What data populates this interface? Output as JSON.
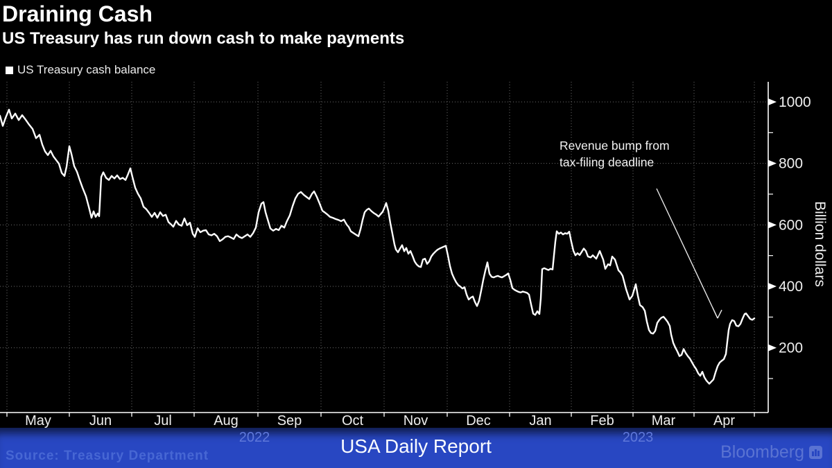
{
  "header": {
    "title": "Draining Cash",
    "subtitle": "US Treasury has run down cash to make payments"
  },
  "legend": {
    "marker_color": "#ffffff",
    "label": "US Treasury cash balance"
  },
  "annotation": {
    "line1": "Revenue bump from",
    "line2": "tax-filing deadline"
  },
  "footer": {
    "source": "Source: Treasury Department",
    "report_title": "USA Daily Report",
    "brand": "Bloomberg",
    "year_left": "2022",
    "year_right": "2023",
    "band_color": "#2847c2"
  },
  "chart_data": {
    "type": "line",
    "title": "Draining Cash",
    "xlabel": "",
    "ylabel": "Billion dollars",
    "x_months": [
      "May",
      "Jun",
      "Jul",
      "Aug",
      "Sep",
      "Oct",
      "Nov",
      "Dec",
      "Jan",
      "Feb",
      "Mar",
      "Apr"
    ],
    "x_years": [
      "2022",
      "2023"
    ],
    "y_ticks": [
      200,
      400,
      600,
      800,
      1000
    ],
    "y_minor_ticks": [
      100,
      300,
      500,
      700,
      900
    ],
    "ylim": [
      0,
      1060
    ],
    "grid": "dotted",
    "legend_position": "top-left",
    "line_color": "#ffffff",
    "background": "#000000",
    "annotation_text": "Revenue bump from tax-filing deadline",
    "series": [
      {
        "name": "US Treasury cash balance",
        "units": "billion USD",
        "points": [
          [
            0,
            955
          ],
          [
            4,
            922
          ],
          [
            8,
            948
          ],
          [
            13,
            975
          ],
          [
            17,
            946
          ],
          [
            22,
            962
          ],
          [
            27,
            941
          ],
          [
            32,
            957
          ],
          [
            37,
            942
          ],
          [
            42,
            926
          ],
          [
            47,
            912
          ],
          [
            52,
            882
          ],
          [
            57,
            893
          ],
          [
            61,
            861
          ],
          [
            65,
            839
          ],
          [
            69,
            827
          ],
          [
            73,
            841
          ],
          [
            77,
            823
          ],
          [
            81,
            811
          ],
          [
            85,
            799
          ],
          [
            89,
            769
          ],
          [
            93,
            759
          ],
          [
            96,
            789
          ],
          [
            100,
            856
          ],
          [
            103,
            831
          ],
          [
            107,
            791
          ],
          [
            111,
            773
          ],
          [
            115,
            746
          ],
          [
            119,
            721
          ],
          [
            124,
            693
          ],
          [
            128,
            659
          ],
          [
            132,
            623
          ],
          [
            135,
            644
          ],
          [
            138,
            626
          ],
          [
            141,
            637
          ],
          [
            143,
            628
          ],
          [
            146,
            756
          ],
          [
            149,
            771
          ],
          [
            153,
            753
          ],
          [
            157,
            746
          ],
          [
            161,
            759
          ],
          [
            165,
            751
          ],
          [
            169,
            761
          ],
          [
            173,
            749
          ],
          [
            177,
            753
          ],
          [
            181,
            746
          ],
          [
            184,
            761
          ],
          [
            188,
            784
          ],
          [
            191,
            756
          ],
          [
            195,
            721
          ],
          [
            199,
            701
          ],
          [
            203,
            686
          ],
          [
            207,
            659
          ],
          [
            211,
            651
          ],
          [
            215,
            639
          ],
          [
            219,
            626
          ],
          [
            223,
            639
          ],
          [
            227,
            623
          ],
          [
            231,
            641
          ],
          [
            235,
            629
          ],
          [
            239,
            633
          ],
          [
            243,
            609
          ],
          [
            247,
            601
          ],
          [
            250,
            594
          ],
          [
            254,
            613
          ],
          [
            258,
            601
          ],
          [
            262,
            597
          ],
          [
            266,
            621
          ],
          [
            270,
            599
          ],
          [
            274,
            607
          ],
          [
            278,
            571
          ],
          [
            281,
            561
          ],
          [
            285,
            589
          ],
          [
            289,
            576
          ],
          [
            293,
            581
          ],
          [
            297,
            583
          ],
          [
            301,
            569
          ],
          [
            305,
            566
          ],
          [
            309,
            571
          ],
          [
            313,
            563
          ],
          [
            317,
            547
          ],
          [
            321,
            553
          ],
          [
            325,
            561
          ],
          [
            329,
            563
          ],
          [
            333,
            559
          ],
          [
            337,
            554
          ],
          [
            341,
            569
          ],
          [
            345,
            561
          ],
          [
            349,
            557
          ],
          [
            353,
            563
          ],
          [
            357,
            569
          ],
          [
            361,
            561
          ],
          [
            365,
            573
          ],
          [
            369,
            591
          ],
          [
            373,
            641
          ],
          [
            377,
            669
          ],
          [
            380,
            674
          ],
          [
            383,
            641
          ],
          [
            386,
            618
          ],
          [
            390,
            588
          ],
          [
            394,
            581
          ],
          [
            398,
            587
          ],
          [
            402,
            583
          ],
          [
            406,
            597
          ],
          [
            410,
            591
          ],
          [
            414,
            613
          ],
          [
            418,
            631
          ],
          [
            422,
            661
          ],
          [
            426,
            686
          ],
          [
            430,
            701
          ],
          [
            434,
            707
          ],
          [
            438,
            698
          ],
          [
            442,
            691
          ],
          [
            446,
            684
          ],
          [
            450,
            701
          ],
          [
            453,
            709
          ],
          [
            457,
            691
          ],
          [
            461,
            669
          ],
          [
            465,
            646
          ],
          [
            468,
            641
          ],
          [
            472,
            634
          ],
          [
            476,
            626
          ],
          [
            480,
            623
          ],
          [
            484,
            619
          ],
          [
            488,
            616
          ],
          [
            492,
            612
          ],
          [
            496,
            617
          ],
          [
            500,
            601
          ],
          [
            503,
            593
          ],
          [
            506,
            579
          ],
          [
            510,
            573
          ],
          [
            514,
            567
          ],
          [
            517,
            563
          ],
          [
            520,
            586
          ],
          [
            523,
            616
          ],
          [
            526,
            641
          ],
          [
            529,
            649
          ],
          [
            532,
            653
          ],
          [
            536,
            644
          ],
          [
            540,
            637
          ],
          [
            543,
            633
          ],
          [
            546,
            627
          ],
          [
            549,
            635
          ],
          [
            552,
            643
          ],
          [
            555,
            659
          ],
          [
            557,
            671
          ],
          [
            560,
            646
          ],
          [
            563,
            606
          ],
          [
            566,
            571
          ],
          [
            569,
            536
          ],
          [
            571,
            520
          ],
          [
            574,
            511
          ],
          [
            577,
            523
          ],
          [
            580,
            534
          ],
          [
            583,
            514
          ],
          [
            586,
            525
          ],
          [
            589,
            506
          ],
          [
            592,
            515
          ],
          [
            595,
            499
          ],
          [
            598,
            481
          ],
          [
            601,
            471
          ],
          [
            604,
            465
          ],
          [
            607,
            463
          ],
          [
            610,
            487
          ],
          [
            613,
            490
          ],
          [
            616,
            473
          ],
          [
            619,
            481
          ],
          [
            622,
            497
          ],
          [
            625,
            506
          ],
          [
            628,
            513
          ],
          [
            631,
            519
          ],
          [
            634,
            523
          ],
          [
            637,
            526
          ],
          [
            640,
            529
          ],
          [
            643,
            532
          ],
          [
            646,
            501
          ],
          [
            649,
            466
          ],
          [
            652,
            441
          ],
          [
            655,
            426
          ],
          [
            658,
            413
          ],
          [
            661,
            404
          ],
          [
            664,
            399
          ],
          [
            667,
            393
          ],
          [
            670,
            397
          ],
          [
            673,
            373
          ],
          [
            676,
            357
          ],
          [
            679,
            363
          ],
          [
            682,
            367
          ],
          [
            685,
            349
          ],
          [
            688,
            336
          ],
          [
            691,
            353
          ],
          [
            694,
            386
          ],
          [
            697,
            421
          ],
          [
            700,
            451
          ],
          [
            703,
            478
          ],
          [
            706,
            441
          ],
          [
            709,
            431
          ],
          [
            712,
            429
          ],
          [
            715,
            432
          ],
          [
            718,
            434
          ],
          [
            721,
            431
          ],
          [
            724,
            429
          ],
          [
            727,
            433
          ],
          [
            730,
            437
          ],
          [
            733,
            442
          ],
          [
            736,
            421
          ],
          [
            739,
            394
          ],
          [
            742,
            389
          ],
          [
            745,
            385
          ],
          [
            748,
            382
          ],
          [
            751,
            380
          ],
          [
            754,
            383
          ],
          [
            757,
            381
          ],
          [
            760,
            379
          ],
          [
            763,
            373
          ],
          [
            766,
            341
          ],
          [
            769,
            311
          ],
          [
            772,
            307
          ],
          [
            775,
            319
          ],
          [
            778,
            310
          ],
          [
            780,
            361
          ],
          [
            782,
            456
          ],
          [
            785,
            459
          ],
          [
            788,
            456
          ],
          [
            791,
            453
          ],
          [
            794,
            457
          ],
          [
            797,
            455
          ],
          [
            799,
            501
          ],
          [
            801,
            546
          ],
          [
            803,
            579
          ],
          [
            806,
            571
          ],
          [
            809,
            575
          ],
          [
            812,
            569
          ],
          [
            815,
            573
          ],
          [
            818,
            571
          ],
          [
            821,
            578
          ],
          [
            824,
            545
          ],
          [
            827,
            516
          ],
          [
            830,
            501
          ],
          [
            833,
            508
          ],
          [
            836,
            502
          ],
          [
            839,
            512
          ],
          [
            842,
            523
          ],
          [
            845,
            515
          ],
          [
            848,
            497
          ],
          [
            852,
            494
          ],
          [
            855,
            501
          ],
          [
            860,
            490
          ],
          [
            865,
            515
          ],
          [
            870,
            487
          ],
          [
            873,
            457
          ],
          [
            877,
            472
          ],
          [
            880,
            468
          ],
          [
            883,
            497
          ],
          [
            887,
            487
          ],
          [
            892,
            452
          ],
          [
            895,
            445
          ],
          [
            898,
            434
          ],
          [
            903,
            391
          ],
          [
            908,
            357
          ],
          [
            912,
            369
          ],
          [
            917,
            407
          ],
          [
            920,
            369
          ],
          [
            923,
            339
          ],
          [
            927,
            332
          ],
          [
            930,
            320
          ],
          [
            933,
            285
          ],
          [
            936,
            258
          ],
          [
            939,
            248
          ],
          [
            942,
            246
          ],
          [
            945,
            255
          ],
          [
            948,
            281
          ],
          [
            951,
            291
          ],
          [
            954,
            298
          ],
          [
            957,
            301
          ],
          [
            960,
            293
          ],
          [
            963,
            284
          ],
          [
            966,
            271
          ],
          [
            968,
            243
          ],
          [
            971,
            216
          ],
          [
            974,
            201
          ],
          [
            977,
            188
          ],
          [
            980,
            173
          ],
          [
            983,
            177
          ],
          [
            986,
            196
          ],
          [
            989,
            183
          ],
          [
            992,
            173
          ],
          [
            995,
            165
          ],
          [
            998,
            153
          ],
          [
            1001,
            141
          ],
          [
            1004,
            131
          ],
          [
            1007,
            117
          ],
          [
            1010,
            109
          ],
          [
            1013,
            122
          ],
          [
            1016,
            104
          ],
          [
            1019,
            93
          ],
          [
            1023,
            83
          ],
          [
            1026,
            90
          ],
          [
            1029,
            97
          ],
          [
            1032,
            120
          ],
          [
            1035,
            140
          ],
          [
            1038,
            152
          ],
          [
            1041,
            158
          ],
          [
            1044,
            163
          ],
          [
            1047,
            180
          ],
          [
            1049,
            220
          ],
          [
            1051,
            258
          ],
          [
            1053,
            278
          ],
          [
            1056,
            290
          ],
          [
            1059,
            287
          ],
          [
            1062,
            272
          ],
          [
            1065,
            270
          ],
          [
            1068,
            278
          ],
          [
            1071,
            295
          ],
          [
            1074,
            310
          ],
          [
            1076,
            312
          ],
          [
            1079,
            303
          ],
          [
            1082,
            294
          ],
          [
            1085,
            291
          ],
          [
            1088,
            296
          ]
        ]
      }
    ]
  }
}
